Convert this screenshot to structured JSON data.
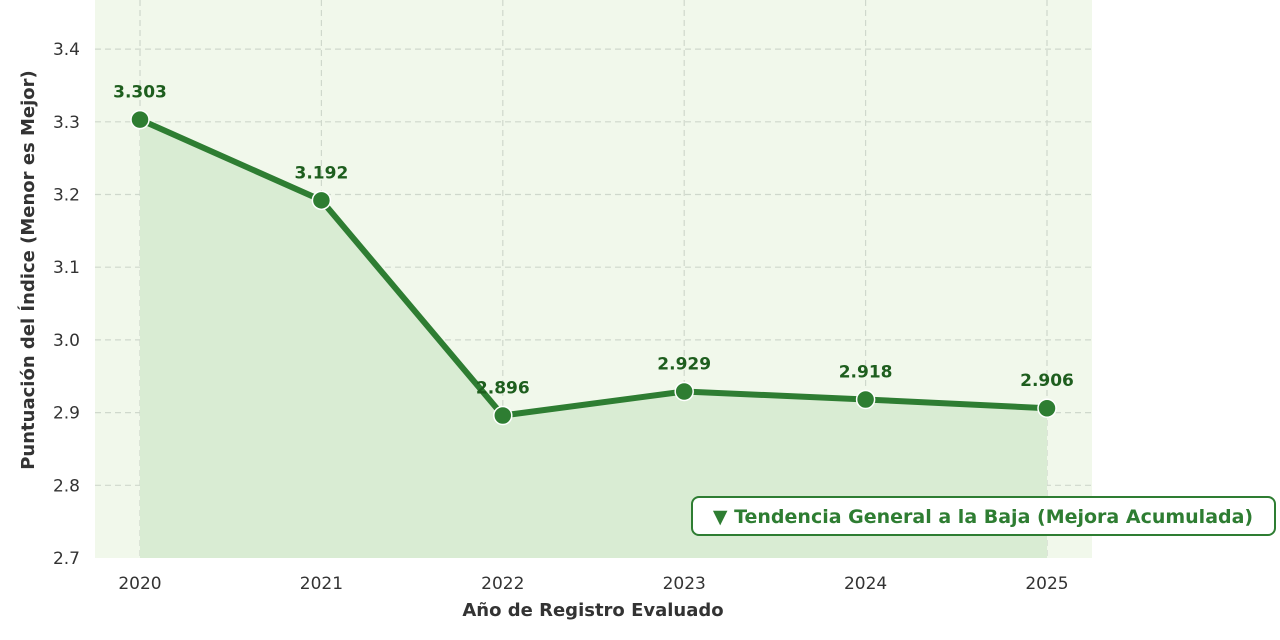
{
  "chart_data": {
    "type": "line",
    "x": [
      "2020",
      "2021",
      "2022",
      "2023",
      "2024",
      "2025"
    ],
    "series": [
      {
        "values": [
          3.303,
          3.192,
          2.896,
          2.929,
          2.918,
          2.906
        ]
      }
    ],
    "data_labels": [
      "3.303",
      "3.192",
      "2.896",
      "2.929",
      "2.918",
      "2.906"
    ],
    "xlabel": "Año de Registro Evaluado",
    "ylabel": "Puntuación del Índice (Menor es Mejor)",
    "ylim": [
      2.7,
      3.45
    ],
    "yticks": [
      "2.7",
      "2.8",
      "2.9",
      "3.0",
      "3.1",
      "3.2",
      "3.3",
      "3.4"
    ],
    "grid": true,
    "area_fill": true,
    "annotation": "▼ Tendencia General a la Baja (Mejora Acumulada)",
    "colors": {
      "line": "#2e7d32",
      "area": "#d9ecd3",
      "plot_bg": "#f1f8eb",
      "label": "#1e5e1e",
      "grid": "#cfd8cc"
    }
  }
}
